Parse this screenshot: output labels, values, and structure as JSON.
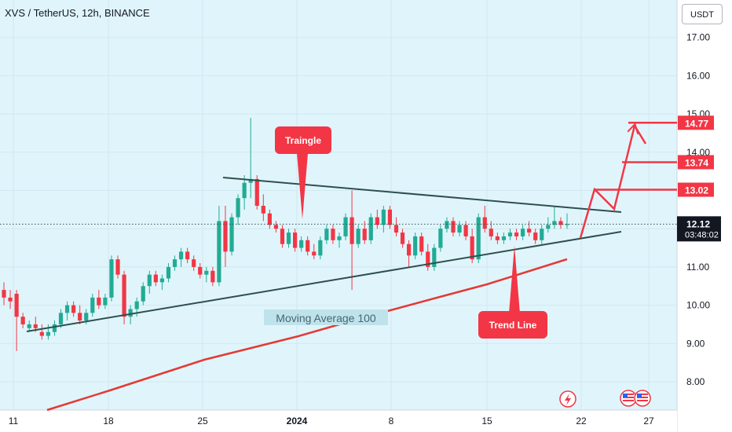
{
  "header": {
    "symbol_title": "XVS / TetherUS, 12h, BINANCE",
    "currency": "USDT"
  },
  "colors": {
    "up": "#22ab94",
    "down": "#f23645",
    "ma": "#e53935",
    "line": "#2f4f4f",
    "label_bg": "#f23645",
    "accent": "#f23645"
  },
  "annotations": {
    "triangle_label": "Traingle",
    "trend_label": "Trend Line",
    "ma_label": "Moving Average 100"
  },
  "price_markers": [
    {
      "label": "14.77",
      "value": 14.77
    },
    {
      "label": "13.74",
      "value": 13.74
    },
    {
      "label": "13.02",
      "value": 13.02
    }
  ],
  "current_price": {
    "label": "12.12",
    "value": 12.12,
    "countdown": "03:48:02"
  },
  "icons": {
    "bottom": [
      "lightning-icon",
      "us-flag-icon"
    ]
  },
  "chart_data": {
    "type": "candlestick",
    "title": "XVS / TetherUS, 12h, BINANCE",
    "y_axis": {
      "min": 7.5,
      "max": 17.5,
      "ticks": [
        8.0,
        9.0,
        10.0,
        11.0,
        12.0,
        13.0,
        14.0,
        15.0,
        16.0,
        17.0
      ]
    },
    "x_axis": {
      "ticks": [
        "11",
        "18",
        "25",
        "2024",
        "8",
        "15",
        "22",
        "27"
      ]
    },
    "candles": [
      [
        10.4,
        10.6,
        10.0,
        10.2
      ],
      [
        10.2,
        10.4,
        9.9,
        10.1
      ],
      [
        10.3,
        10.4,
        8.8,
        9.7
      ],
      [
        9.7,
        9.8,
        9.4,
        9.5
      ],
      [
        9.4,
        9.6,
        9.3,
        9.5
      ],
      [
        9.5,
        9.7,
        9.3,
        9.4
      ],
      [
        9.3,
        9.5,
        9.1,
        9.2
      ],
      [
        9.2,
        9.5,
        9.1,
        9.3
      ],
      [
        9.3,
        9.6,
        9.2,
        9.5
      ],
      [
        9.5,
        9.9,
        9.4,
        9.8
      ],
      [
        9.8,
        10.1,
        9.6,
        10.0
      ],
      [
        10.0,
        10.1,
        9.7,
        9.8
      ],
      [
        9.8,
        10.0,
        9.5,
        9.6
      ],
      [
        9.6,
        9.9,
        9.5,
        9.8
      ],
      [
        9.8,
        10.3,
        9.7,
        10.2
      ],
      [
        10.2,
        10.4,
        9.9,
        10.0
      ],
      [
        10.0,
        10.3,
        9.9,
        10.2
      ],
      [
        10.2,
        11.3,
        10.1,
        11.2
      ],
      [
        11.2,
        11.3,
        10.7,
        10.8
      ],
      [
        10.8,
        10.9,
        9.5,
        9.7
      ],
      [
        9.7,
        10.0,
        9.5,
        9.9
      ],
      [
        9.9,
        10.2,
        9.7,
        10.1
      ],
      [
        10.1,
        10.6,
        10.0,
        10.5
      ],
      [
        10.5,
        10.9,
        10.3,
        10.8
      ],
      [
        10.8,
        10.9,
        10.5,
        10.6
      ],
      [
        10.6,
        10.8,
        10.4,
        10.7
      ],
      [
        10.7,
        11.1,
        10.6,
        11.0
      ],
      [
        11.0,
        11.3,
        10.9,
        11.2
      ],
      [
        11.2,
        11.5,
        11.0,
        11.4
      ],
      [
        11.4,
        11.5,
        11.1,
        11.2
      ],
      [
        11.2,
        11.3,
        10.9,
        11.0
      ],
      [
        11.0,
        11.1,
        10.7,
        10.8
      ],
      [
        10.8,
        11.0,
        10.6,
        10.9
      ],
      [
        10.9,
        11.0,
        10.5,
        10.6
      ],
      [
        10.6,
        12.6,
        10.5,
        12.2
      ],
      [
        12.2,
        12.6,
        11.0,
        11.4
      ],
      [
        11.4,
        12.4,
        11.3,
        12.3
      ],
      [
        12.3,
        12.9,
        12.1,
        12.8
      ],
      [
        12.8,
        13.4,
        12.5,
        13.2
      ],
      [
        13.2,
        14.9,
        12.8,
        13.3
      ],
      [
        13.3,
        13.4,
        12.5,
        12.6
      ],
      [
        12.6,
        12.9,
        12.2,
        12.4
      ],
      [
        12.4,
        12.5,
        12.0,
        12.1
      ],
      [
        12.1,
        12.2,
        11.9,
        12.0
      ],
      [
        12.0,
        12.1,
        11.5,
        11.6
      ],
      [
        11.6,
        12.0,
        11.5,
        11.9
      ],
      [
        11.9,
        12.0,
        11.4,
        11.5
      ],
      [
        11.5,
        11.8,
        11.4,
        11.7
      ],
      [
        11.7,
        11.8,
        11.3,
        11.4
      ],
      [
        11.4,
        11.6,
        11.2,
        11.3
      ],
      [
        11.3,
        11.8,
        11.2,
        11.7
      ],
      [
        11.7,
        12.1,
        11.6,
        12.0
      ],
      [
        12.0,
        12.1,
        11.6,
        11.7
      ],
      [
        11.7,
        11.9,
        11.5,
        11.8
      ],
      [
        11.8,
        12.4,
        11.7,
        12.3
      ],
      [
        12.3,
        13.0,
        10.4,
        11.6
      ],
      [
        11.6,
        12.1,
        11.5,
        12.0
      ],
      [
        12.0,
        12.2,
        11.6,
        11.7
      ],
      [
        11.7,
        12.4,
        11.6,
        12.3
      ],
      [
        12.3,
        12.5,
        12.0,
        12.1
      ],
      [
        12.1,
        12.6,
        11.9,
        12.5
      ],
      [
        12.5,
        12.6,
        12.0,
        12.1
      ],
      [
        12.1,
        12.3,
        11.8,
        11.9
      ],
      [
        11.9,
        12.0,
        11.5,
        11.6
      ],
      [
        11.6,
        11.7,
        11.0,
        11.3
      ],
      [
        11.3,
        11.9,
        11.2,
        11.8
      ],
      [
        11.8,
        11.9,
        11.3,
        11.4
      ],
      [
        11.4,
        11.6,
        10.9,
        11.0
      ],
      [
        11.0,
        11.6,
        10.9,
        11.5
      ],
      [
        11.5,
        12.1,
        11.4,
        12.0
      ],
      [
        12.0,
        12.3,
        11.9,
        12.2
      ],
      [
        12.2,
        12.3,
        11.8,
        11.9
      ],
      [
        11.9,
        12.2,
        11.8,
        12.1
      ],
      [
        12.1,
        12.2,
        11.7,
        11.8
      ],
      [
        11.8,
        12.0,
        11.1,
        11.2
      ],
      [
        11.2,
        12.4,
        11.1,
        12.3
      ],
      [
        12.3,
        12.6,
        11.9,
        12.0
      ],
      [
        12.0,
        12.2,
        11.7,
        11.8
      ],
      [
        11.8,
        11.9,
        11.6,
        11.7
      ],
      [
        11.7,
        11.9,
        11.6,
        11.8
      ],
      [
        11.8,
        12.0,
        11.7,
        11.9
      ],
      [
        11.9,
        12.0,
        11.7,
        11.8
      ],
      [
        11.8,
        12.1,
        11.7,
        12.0
      ],
      [
        12.0,
        12.2,
        11.8,
        11.9
      ],
      [
        11.9,
        12.0,
        11.6,
        11.7
      ],
      [
        11.7,
        12.1,
        11.6,
        12.0
      ],
      [
        12.0,
        12.3,
        11.9,
        12.1
      ],
      [
        12.1,
        12.6,
        12.0,
        12.2
      ],
      [
        12.2,
        12.3,
        12.0,
        12.1
      ],
      [
        12.1,
        12.4,
        12.0,
        12.12
      ]
    ]
  }
}
